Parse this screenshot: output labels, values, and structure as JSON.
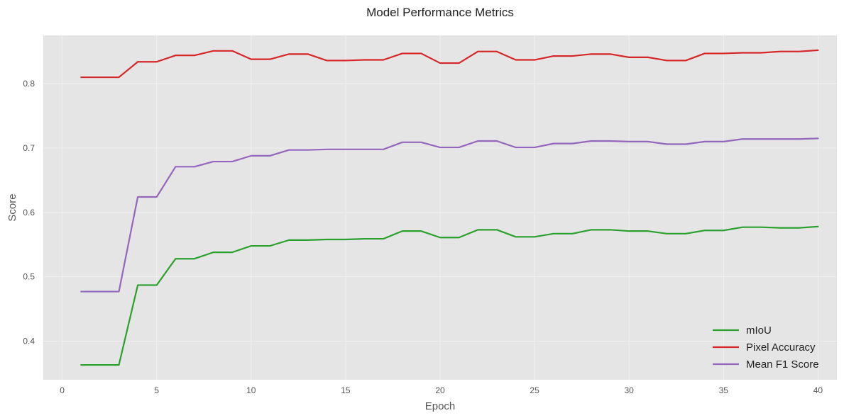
{
  "chart_data": {
    "type": "line",
    "title": "Model Performance Metrics",
    "xlabel": "Epoch",
    "ylabel": "Score",
    "xlim": [
      -1,
      41
    ],
    "ylim": [
      0.34,
      0.875
    ],
    "xticks": [
      0,
      5,
      10,
      15,
      20,
      25,
      30,
      35,
      40
    ],
    "yticks": [
      0.4,
      0.5,
      0.6,
      0.7,
      0.8
    ],
    "grid": true,
    "legend_position": "bottom-right",
    "x": [
      1,
      2,
      3,
      4,
      5,
      6,
      7,
      8,
      9,
      10,
      11,
      12,
      13,
      14,
      15,
      16,
      17,
      18,
      19,
      20,
      21,
      22,
      23,
      24,
      25,
      26,
      27,
      28,
      29,
      30,
      31,
      32,
      33,
      34,
      35,
      36,
      37,
      38,
      39,
      40
    ],
    "series": [
      {
        "name": "mIoU",
        "color": "#2ca02c",
        "values": [
          0.363,
          0.363,
          0.363,
          0.487,
          0.487,
          0.528,
          0.528,
          0.538,
          0.538,
          0.548,
          0.548,
          0.557,
          0.557,
          0.558,
          0.558,
          0.559,
          0.559,
          0.571,
          0.571,
          0.561,
          0.561,
          0.573,
          0.573,
          0.562,
          0.562,
          0.567,
          0.567,
          0.573,
          0.573,
          0.571,
          0.571,
          0.567,
          0.567,
          0.572,
          0.572,
          0.577,
          0.577,
          0.576,
          0.576,
          0.578
        ]
      },
      {
        "name": "Pixel Accuracy",
        "color": "#d62728",
        "values": [
          0.81,
          0.81,
          0.81,
          0.834,
          0.834,
          0.844,
          0.844,
          0.851,
          0.851,
          0.838,
          0.838,
          0.846,
          0.846,
          0.836,
          0.836,
          0.837,
          0.837,
          0.847,
          0.847,
          0.832,
          0.832,
          0.85,
          0.85,
          0.837,
          0.837,
          0.843,
          0.843,
          0.846,
          0.846,
          0.841,
          0.841,
          0.836,
          0.836,
          0.847,
          0.847,
          0.848,
          0.848,
          0.85,
          0.85,
          0.852
        ]
      },
      {
        "name": "Mean F1 Score",
        "color": "#9467bd",
        "values": [
          0.477,
          0.477,
          0.477,
          0.624,
          0.624,
          0.671,
          0.671,
          0.679,
          0.679,
          0.688,
          0.688,
          0.697,
          0.697,
          0.698,
          0.698,
          0.698,
          0.698,
          0.709,
          0.709,
          0.701,
          0.701,
          0.711,
          0.711,
          0.701,
          0.701,
          0.707,
          0.707,
          0.711,
          0.711,
          0.71,
          0.71,
          0.706,
          0.706,
          0.71,
          0.71,
          0.714,
          0.714,
          0.714,
          0.714,
          0.715
        ]
      }
    ]
  }
}
